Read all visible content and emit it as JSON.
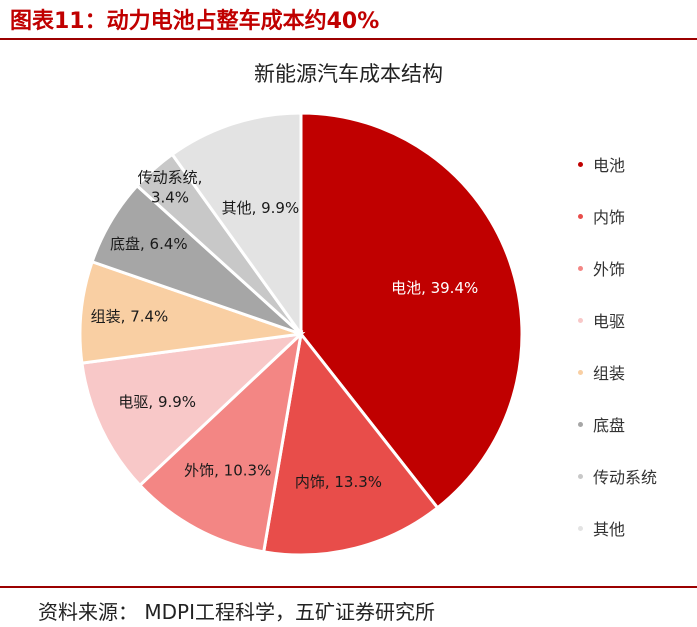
{
  "header": {
    "title": "图表11：动力电池占整车成本约40%"
  },
  "footer": {
    "source": "资料来源：  MDPI工程科学，五矿证券研究所"
  },
  "chart_data": {
    "type": "pie",
    "title": "新能源汽车成本结构",
    "start_angle_deg": 0,
    "direction": "clockwise",
    "legend_position": "right",
    "slices": [
      {
        "name": "电池",
        "value": 39.4,
        "label": "电池, 39.4%",
        "color": "#c00000",
        "label_color": "#ffffff"
      },
      {
        "name": "内饰",
        "value": 13.3,
        "label": "内饰, 13.3%",
        "color": "#e84d4a",
        "label_color": "#1a1a1a"
      },
      {
        "name": "外饰",
        "value": 10.3,
        "label": "外饰, 10.3%",
        "color": "#f38684",
        "label_color": "#1a1a1a"
      },
      {
        "name": "电驱",
        "value": 9.9,
        "label": "电驱, 9.9%",
        "color": "#f8c8c8",
        "label_color": "#1a1a1a"
      },
      {
        "name": "组装",
        "value": 7.4,
        "label": "组装, 7.4%",
        "color": "#f9cfa3",
        "label_color": "#1a1a1a"
      },
      {
        "name": "底盘",
        "value": 6.4,
        "label": "底盘, 6.4%",
        "color": "#a6a6a6",
        "label_color": "#1a1a1a"
      },
      {
        "name": "传动系统",
        "value": 3.4,
        "label": "传动系统, 3.4%",
        "color": "#c8c8c8",
        "label_color": "#1a1a1a"
      },
      {
        "name": "其他",
        "value": 9.9,
        "label": "其他, 9.9%",
        "color": "#e3e3e3",
        "label_color": "#1a1a1a"
      }
    ]
  }
}
